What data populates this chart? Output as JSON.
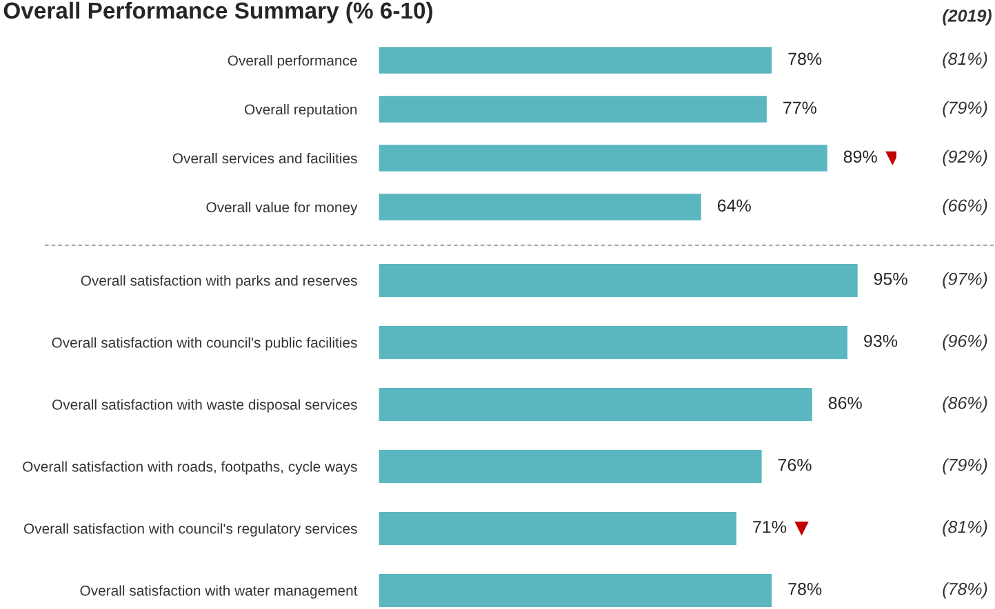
{
  "chart_data": [
    {
      "type": "bar",
      "orientation": "horizontal",
      "title": "Overall Performance Summary (% 6-10)",
      "color": "#5ab6bf",
      "categories": [
        "Overall performance",
        "Overall reputation",
        "Overall services and facilities",
        "Overall value for money"
      ],
      "values": [
        78,
        77,
        89,
        64
      ],
      "value_labels": [
        "78%",
        "77%",
        "89%",
        "64%"
      ],
      "annotations": [
        "(2019)",
        "(81%)",
        "(79%)",
        "(92%)",
        "(66%)"
      ]
    },
    {
      "type": "bar",
      "orientation": "horizontal",
      "color": "#5ab6bf",
      "categories": [
        "Overall satisfaction with parks and reserves",
        "Overall satisfaction with council's public facilities",
        "Overall satisfaction with waste disposal services",
        "Overall satisfaction with roads, footpaths, cycle ways",
        "Overall satisfaction with council's regulatory services",
        "Overall satisfaction with water management"
      ],
      "values": [
        95,
        93,
        86,
        76,
        71,
        78
      ],
      "value_labels": [
        "95%",
        "93%",
        "86%",
        "76%",
        "71%",
        "78%"
      ],
      "annotations": [
        "(97%)",
        "(96%)",
        "(86%)",
        "(79%)",
        "(81%)",
        "(78%)"
      ]
    }
  ]
}
